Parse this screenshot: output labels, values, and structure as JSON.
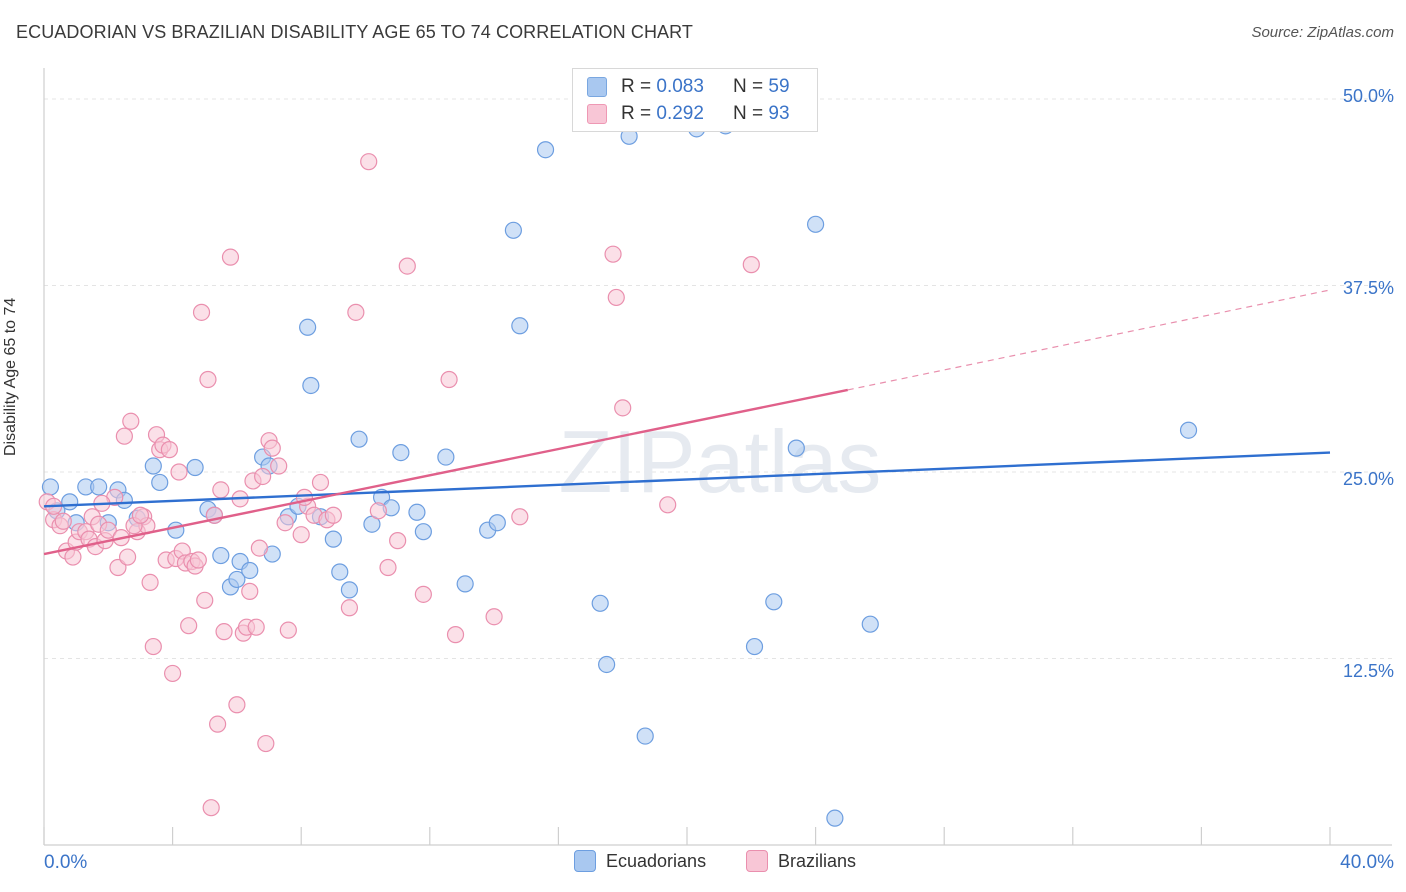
{
  "title": "ECUADORIAN VS BRAZILIAN DISABILITY AGE 65 TO 74 CORRELATION CHART",
  "source": "Source: ZipAtlas.com",
  "watermark": "ZIPatlas",
  "legend_top": [
    {
      "r_label": "R =",
      "r_value": "0.083",
      "n_label": "N =",
      "n_value": "59",
      "color": "#a9c8f0",
      "border": "#7aa7e0"
    },
    {
      "r_label": "R =",
      "r_value": "0.292",
      "n_label": "N =",
      "n_value": "93",
      "color": "#f8c6d6",
      "border": "#ee98b4"
    }
  ],
  "legend_bottom": [
    {
      "label": "Ecuadorians",
      "color": "#a9c8f0",
      "border": "#6d9ee0"
    },
    {
      "label": "Brazilians",
      "color": "#f8c6d6",
      "border": "#ea8fae"
    }
  ],
  "x_ticks": {
    "left": "0.0%",
    "right": "40.0%"
  },
  "y_ticks": [
    "50.0%",
    "37.5%",
    "25.0%",
    "12.5%"
  ],
  "chart_data": {
    "type": "scatter",
    "title": "ECUADORIAN VS BRAZILIAN DISABILITY AGE 65 TO 74 CORRELATION CHART",
    "xlabel": "",
    "ylabel": "Disability Age 65 to 74",
    "xlim": [
      0,
      40
    ],
    "ylim": [
      0,
      50
    ],
    "y_gridlines": [
      12.5,
      25.0,
      37.5,
      50.0
    ],
    "grid": true,
    "legend_position": "top-center",
    "series": [
      {
        "name": "Ecuadorians",
        "color": "#6d9ee0",
        "fill": "#a9c8f0",
        "trend": {
          "x": [
            0,
            40
          ],
          "y": [
            22.7,
            26.3
          ]
        },
        "points": [
          [
            0.2,
            24.0
          ],
          [
            0.4,
            22.4
          ],
          [
            0.8,
            23.0
          ],
          [
            1.0,
            21.6
          ],
          [
            1.3,
            24.0
          ],
          [
            1.7,
            24.0
          ],
          [
            2.0,
            21.6
          ],
          [
            2.3,
            23.8
          ],
          [
            2.5,
            23.1
          ],
          [
            2.9,
            21.9
          ],
          [
            3.4,
            25.4
          ],
          [
            3.6,
            24.3
          ],
          [
            4.1,
            21.1
          ],
          [
            4.7,
            25.3
          ],
          [
            5.1,
            22.5
          ],
          [
            5.3,
            22.1
          ],
          [
            5.5,
            19.4
          ],
          [
            5.8,
            17.3
          ],
          [
            6.0,
            17.8
          ],
          [
            6.1,
            19.0
          ],
          [
            6.4,
            18.4
          ],
          [
            6.8,
            26.0
          ],
          [
            7.0,
            25.4
          ],
          [
            7.1,
            19.5
          ],
          [
            7.6,
            22.0
          ],
          [
            7.9,
            22.7
          ],
          [
            8.2,
            34.7
          ],
          [
            8.3,
            30.8
          ],
          [
            8.6,
            22.0
          ],
          [
            9.0,
            20.5
          ],
          [
            9.2,
            18.3
          ],
          [
            9.5,
            17.1
          ],
          [
            9.8,
            27.2
          ],
          [
            10.2,
            21.5
          ],
          [
            10.5,
            23.3
          ],
          [
            10.8,
            22.6
          ],
          [
            11.1,
            26.3
          ],
          [
            11.6,
            22.3
          ],
          [
            11.8,
            21.0
          ],
          [
            12.5,
            26.0
          ],
          [
            13.1,
            17.5
          ],
          [
            13.8,
            21.1
          ],
          [
            14.1,
            21.6
          ],
          [
            14.6,
            41.2
          ],
          [
            14.8,
            34.8
          ],
          [
            15.6,
            46.6
          ],
          [
            17.3,
            16.2
          ],
          [
            17.5,
            12.1
          ],
          [
            18.2,
            47.5
          ],
          [
            18.7,
            7.3
          ],
          [
            21.2,
            48.2
          ],
          [
            22.1,
            13.3
          ],
          [
            22.7,
            16.3
          ],
          [
            23.4,
            26.6
          ],
          [
            24.0,
            41.6
          ],
          [
            24.6,
            1.8
          ],
          [
            25.7,
            14.8
          ],
          [
            35.6,
            27.8
          ],
          [
            20.3,
            48.0
          ]
        ]
      },
      {
        "name": "Brazilians",
        "color": "#ea8fae",
        "fill": "#f8c6d6",
        "trend": {
          "x": [
            0,
            25
          ],
          "y": [
            19.5,
            30.5
          ]
        },
        "trend_ext": {
          "x": [
            25,
            40
          ],
          "y": [
            30.5,
            37.2
          ]
        },
        "points": [
          [
            0.1,
            23.0
          ],
          [
            0.3,
            21.8
          ],
          [
            0.5,
            21.4
          ],
          [
            0.7,
            19.7
          ],
          [
            0.9,
            19.3
          ],
          [
            1.0,
            20.3
          ],
          [
            1.1,
            21.0
          ],
          [
            1.3,
            21.0
          ],
          [
            1.4,
            20.5
          ],
          [
            1.5,
            22.0
          ],
          [
            1.6,
            20.0
          ],
          [
            1.7,
            21.5
          ],
          [
            1.9,
            20.4
          ],
          [
            2.0,
            21.1
          ],
          [
            2.2,
            23.3
          ],
          [
            2.3,
            18.6
          ],
          [
            2.4,
            20.6
          ],
          [
            2.5,
            27.4
          ],
          [
            2.6,
            19.3
          ],
          [
            2.7,
            28.4
          ],
          [
            2.9,
            21.0
          ],
          [
            3.1,
            22.0
          ],
          [
            3.2,
            21.4
          ],
          [
            3.3,
            17.6
          ],
          [
            3.4,
            13.3
          ],
          [
            3.5,
            27.5
          ],
          [
            3.6,
            26.5
          ],
          [
            3.7,
            26.8
          ],
          [
            3.8,
            19.1
          ],
          [
            3.9,
            26.5
          ],
          [
            4.0,
            11.5
          ],
          [
            4.1,
            19.2
          ],
          [
            4.2,
            25.0
          ],
          [
            4.3,
            19.7
          ],
          [
            4.4,
            18.9
          ],
          [
            4.5,
            14.7
          ],
          [
            4.6,
            19.0
          ],
          [
            4.7,
            18.7
          ],
          [
            4.8,
            19.1
          ],
          [
            4.9,
            35.7
          ],
          [
            5.0,
            16.4
          ],
          [
            5.1,
            31.2
          ],
          [
            5.3,
            22.1
          ],
          [
            5.4,
            8.1
          ],
          [
            5.5,
            23.8
          ],
          [
            5.6,
            14.3
          ],
          [
            5.8,
            39.4
          ],
          [
            6.0,
            9.4
          ],
          [
            6.1,
            23.2
          ],
          [
            6.2,
            14.2
          ],
          [
            6.3,
            14.6
          ],
          [
            6.4,
            17.0
          ],
          [
            6.5,
            24.4
          ],
          [
            6.6,
            14.6
          ],
          [
            6.8,
            24.7
          ],
          [
            6.9,
            6.8
          ],
          [
            7.0,
            27.1
          ],
          [
            7.1,
            26.6
          ],
          [
            7.3,
            25.4
          ],
          [
            7.5,
            21.6
          ],
          [
            7.6,
            14.4
          ],
          [
            8.0,
            20.8
          ],
          [
            8.2,
            22.7
          ],
          [
            8.4,
            22.1
          ],
          [
            8.6,
            24.3
          ],
          [
            8.8,
            21.8
          ],
          [
            9.0,
            22.1
          ],
          [
            9.5,
            15.9
          ],
          [
            9.7,
            35.7
          ],
          [
            10.1,
            45.8
          ],
          [
            10.4,
            22.4
          ],
          [
            10.7,
            18.6
          ],
          [
            11.0,
            20.4
          ],
          [
            11.3,
            38.8
          ],
          [
            11.8,
            16.8
          ],
          [
            12.6,
            31.2
          ],
          [
            12.8,
            14.1
          ],
          [
            14.0,
            15.3
          ],
          [
            14.8,
            22.0
          ],
          [
            17.7,
            39.6
          ],
          [
            17.8,
            36.7
          ],
          [
            18.0,
            29.3
          ],
          [
            19.4,
            22.8
          ],
          [
            22.0,
            38.9
          ],
          [
            22.2,
            48.5
          ],
          [
            0.3,
            22.7
          ],
          [
            0.6,
            21.7
          ],
          [
            1.8,
            22.9
          ],
          [
            2.8,
            21.4
          ],
          [
            3.0,
            22.1
          ],
          [
            5.2,
            2.5
          ],
          [
            6.7,
            19.9
          ],
          [
            8.1,
            23.3
          ]
        ]
      }
    ]
  }
}
